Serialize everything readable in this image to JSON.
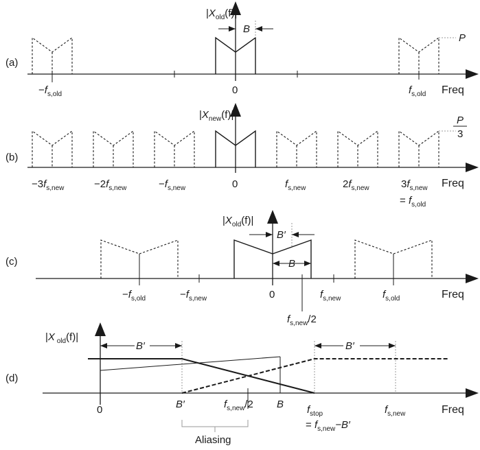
{
  "panels": {
    "a": {
      "tag": "(a)",
      "ylabel": {
        "pre": "|",
        "var": "X",
        "sub": "old",
        "post": "(f)|"
      },
      "bandwidth": "B",
      "peak": "P",
      "freq": "Freq",
      "ticks": {
        "zero": "0",
        "neg_fs": {
          "pre": "−",
          "var": "f",
          "sub": "s,old"
        },
        "pos_fs": {
          "var": "f",
          "sub": "s,old"
        }
      }
    },
    "b": {
      "tag": "(b)",
      "ylabel": {
        "pre": "|",
        "var": "X",
        "sub": "new",
        "post": "(f)|"
      },
      "peak_num": "P",
      "peak_den": "3",
      "freq": "Freq",
      "ticks": {
        "m3": {
          "pre": "−3",
          "var": "f",
          "sub": "s,new"
        },
        "m2": {
          "pre": "−2",
          "var": "f",
          "sub": "s,new"
        },
        "m1": {
          "pre": "−",
          "var": "f",
          "sub": "s,new"
        },
        "zero": "0",
        "p1": {
          "var": "f",
          "sub": "s,new"
        },
        "p2": {
          "pre": "2",
          "var": "f",
          "sub": "s,new"
        },
        "p3": {
          "pre": "3",
          "var": "f",
          "sub": "s,new"
        },
        "eq": {
          "pre": "= ",
          "var": "f",
          "sub": "s,old"
        }
      }
    },
    "c": {
      "tag": "(c)",
      "ylabel": {
        "pre": "|",
        "var": "X",
        "sub": "old",
        "post": "(f)|"
      },
      "bprime": "B′",
      "b": "B",
      "freq": "Freq",
      "ticks": {
        "neg_fsold": {
          "pre": "−",
          "var": "f",
          "sub": "s,old"
        },
        "neg_fsnew": {
          "pre": "−",
          "var": "f",
          "sub": "s,new"
        },
        "zero": "0",
        "half": {
          "var": "f",
          "sub": "s,new",
          "post": "/2"
        },
        "fsnew": {
          "var": "f",
          "sub": "s,new"
        },
        "fsold": {
          "var": "f",
          "sub": "s,old"
        }
      }
    },
    "d": {
      "tag": "(d)",
      "ylabel": {
        "pre": "|",
        "var": "X",
        "sub": " old",
        "post": "(f)|"
      },
      "bprime_left": "B′",
      "bprime_right": "B′",
      "freq": "Freq",
      "ticks": {
        "zero": "0",
        "bprime": "B′",
        "half": {
          "var": "f",
          "sub": "s,new",
          "post": "/2"
        },
        "b": "B",
        "fstop": {
          "var": "f",
          "sub": "stop"
        },
        "fstop_eq": {
          "pre": "= ",
          "var": "f",
          "sub": "s,new",
          "post": "−B′"
        },
        "fsnew": {
          "var": "f",
          "sub": "s,new"
        }
      },
      "aliasing": "Aliasing"
    }
  }
}
